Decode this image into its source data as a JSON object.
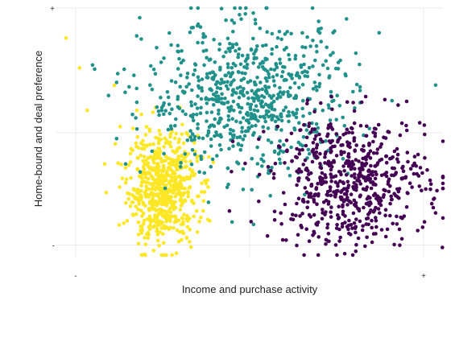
{
  "chart_data": {
    "type": "scatter",
    "title": "",
    "xlabel": "Income and purchase activity",
    "ylabel": "Home-bound and deal preference",
    "xlim": [
      -1,
      1
    ],
    "ylim": [
      -1,
      1
    ],
    "x_tick_labels": [
      {
        "value": -0.9,
        "label": "-"
      },
      {
        "value": 0.9,
        "label": "+"
      }
    ],
    "y_tick_labels": [
      {
        "value": -0.9,
        "label": "-"
      },
      {
        "value": 1.0,
        "label": "+"
      }
    ],
    "grid": true,
    "legend": "none",
    "series": [
      {
        "color": "#FDE725",
        "cluster": {
          "center": [
            -0.45,
            -0.45
          ],
          "spread": [
            0.09,
            0.22
          ],
          "n": 650
        },
        "outliers": [
          {
            "x": -0.95,
            "y": 0.76
          },
          {
            "x": -0.88,
            "y": 0.52
          },
          {
            "x": -0.7,
            "y": 0.38
          },
          {
            "x": -0.84,
            "y": 0.18
          },
          {
            "x": -0.67,
            "y": 0.05
          },
          {
            "x": -0.75,
            "y": -0.25
          },
          {
            "x": -0.58,
            "y": -0.2
          },
          {
            "x": -0.6,
            "y": -0.45
          }
        ]
      },
      {
        "color": "#21918C",
        "cluster": {
          "center": [
            0.0,
            0.28
          ],
          "spread": [
            0.27,
            0.3
          ],
          "n": 720
        },
        "outliers": []
      },
      {
        "color": "#440154",
        "cluster": {
          "center": [
            0.52,
            -0.38
          ],
          "spread": [
            0.2,
            0.26
          ],
          "n": 620
        },
        "outliers": [
          {
            "x": 0.88,
            "y": 0.08
          },
          {
            "x": 1.0,
            "y": -0.35
          },
          {
            "x": 0.95,
            "y": -0.6
          }
        ]
      }
    ]
  }
}
